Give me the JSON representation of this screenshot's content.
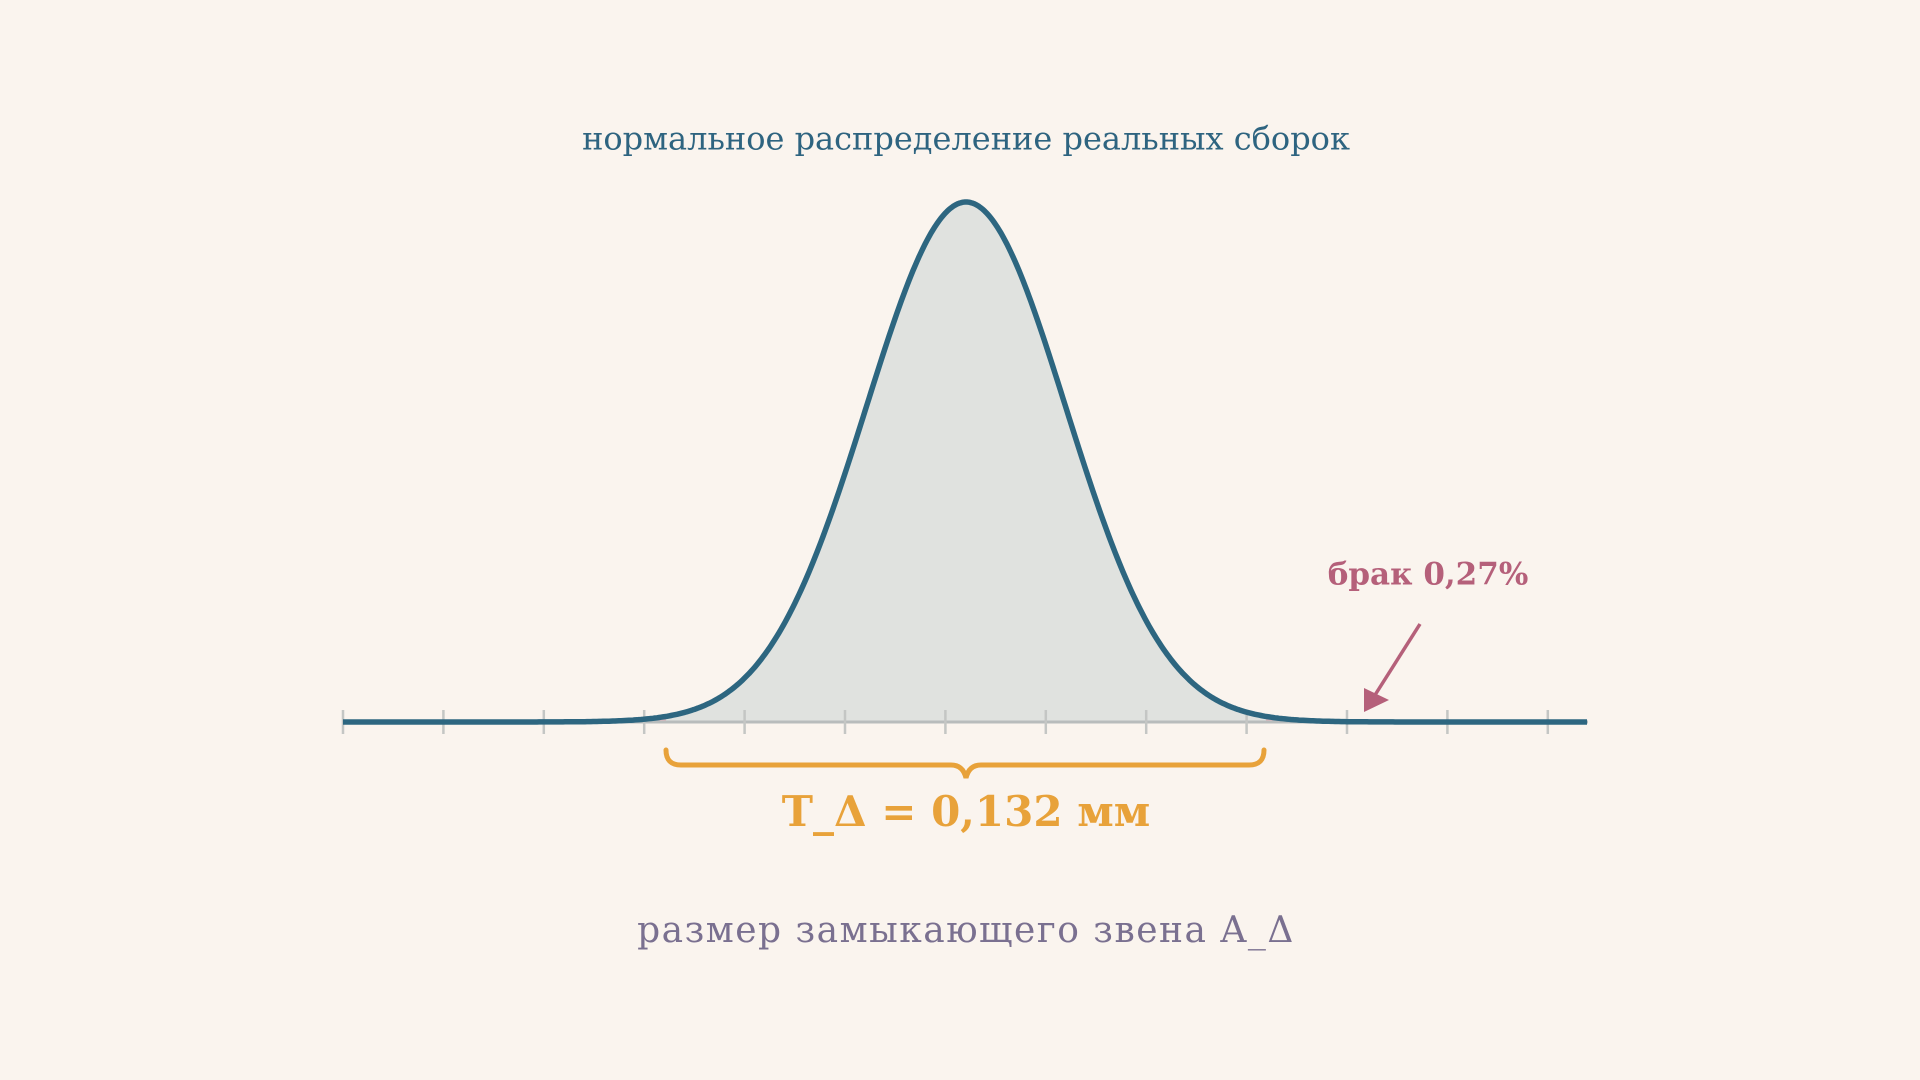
{
  "title": "нормальное распределение реальных сборок",
  "tolerance_label": "T_Δ = 0,132 мм",
  "defect_label": "брак 0,27%",
  "axis_label": "размер замыкающего звена A_Δ"
}
